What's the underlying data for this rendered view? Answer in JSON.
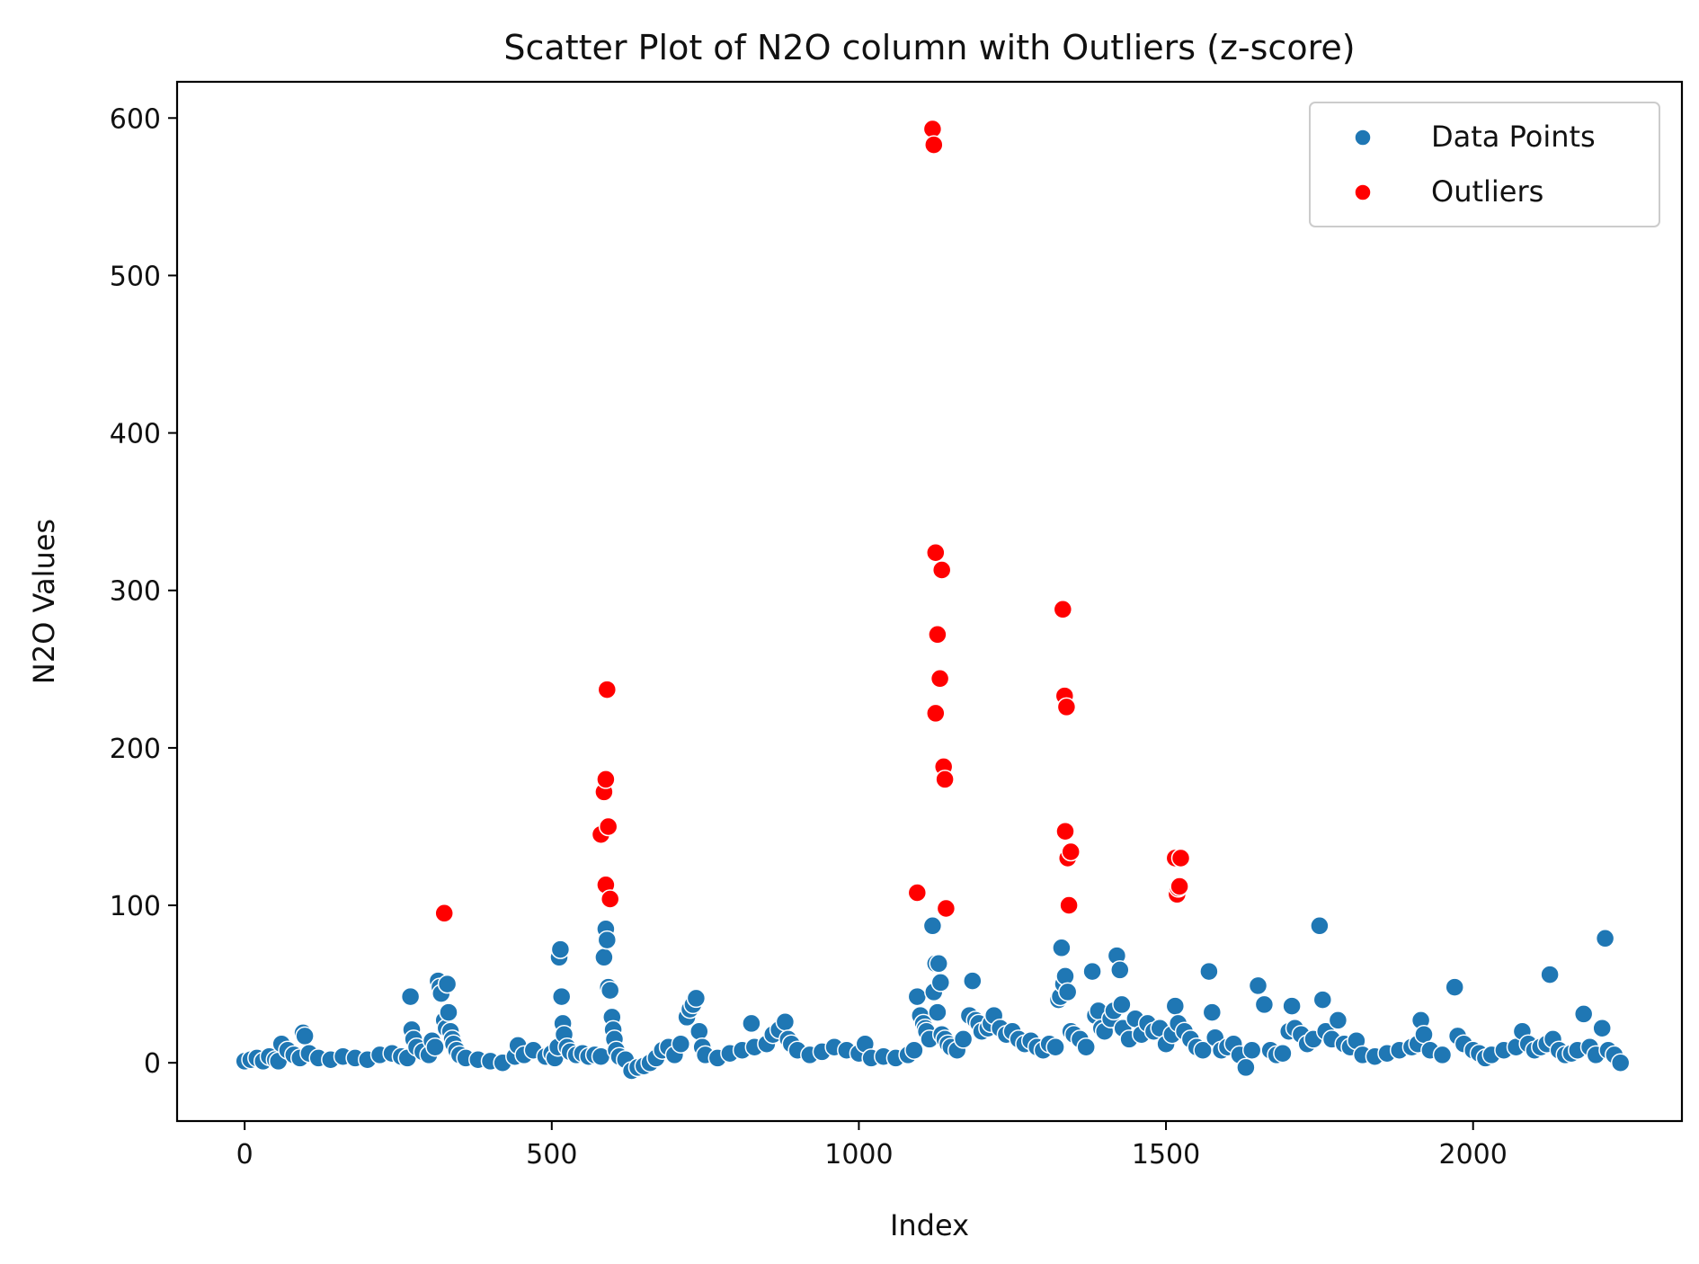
{
  "chart_data": {
    "type": "scatter",
    "title": "Scatter Plot of N2O column with Outliers (z-score)",
    "xlabel": "Index",
    "ylabel": "N2O Values",
    "xlim": [
      -110,
      2340
    ],
    "ylim": [
      -37,
      623
    ],
    "xticks": [
      "0",
      "500",
      "1000",
      "1500",
      "2000"
    ],
    "yticks": [
      "0",
      "100",
      "200",
      "300",
      "400",
      "500",
      "600"
    ],
    "grid": false,
    "legend_position": "top-right",
    "colors": {
      "data_points": "#1f77b4",
      "outliers": "#ff0000"
    },
    "series": [
      {
        "name": "Data Points",
        "points": [
          [
            0,
            1
          ],
          [
            10,
            2
          ],
          [
            20,
            3
          ],
          [
            30,
            1
          ],
          [
            40,
            4
          ],
          [
            50,
            2
          ],
          [
            55,
            1
          ],
          [
            60,
            12
          ],
          [
            70,
            8
          ],
          [
            80,
            5
          ],
          [
            90,
            3
          ],
          [
            95,
            19
          ],
          [
            98,
            17
          ],
          [
            105,
            6
          ],
          [
            120,
            3
          ],
          [
            140,
            2
          ],
          [
            160,
            4
          ],
          [
            180,
            3
          ],
          [
            200,
            2
          ],
          [
            220,
            5
          ],
          [
            240,
            6
          ],
          [
            255,
            4
          ],
          [
            265,
            3
          ],
          [
            270,
            42
          ],
          [
            272,
            21
          ],
          [
            275,
            15
          ],
          [
            280,
            10
          ],
          [
            290,
            7
          ],
          [
            300,
            5
          ],
          [
            305,
            14
          ],
          [
            310,
            10
          ],
          [
            315,
            52
          ],
          [
            318,
            48
          ],
          [
            320,
            44
          ],
          [
            325,
            27
          ],
          [
            328,
            22
          ],
          [
            330,
            50
          ],
          [
            332,
            32
          ],
          [
            335,
            20
          ],
          [
            338,
            15
          ],
          [
            340,
            12
          ],
          [
            345,
            8
          ],
          [
            350,
            5
          ],
          [
            360,
            3
          ],
          [
            380,
            2
          ],
          [
            400,
            1
          ],
          [
            420,
            0
          ],
          [
            440,
            4
          ],
          [
            445,
            11
          ],
          [
            455,
            5
          ],
          [
            470,
            8
          ],
          [
            490,
            4
          ],
          [
            500,
            6
          ],
          [
            505,
            3
          ],
          [
            510,
            10
          ],
          [
            512,
            67
          ],
          [
            514,
            72
          ],
          [
            516,
            42
          ],
          [
            518,
            25
          ],
          [
            520,
            18
          ],
          [
            525,
            10
          ],
          [
            530,
            7
          ],
          [
            540,
            5
          ],
          [
            550,
            6
          ],
          [
            560,
            4
          ],
          [
            570,
            5
          ],
          [
            580,
            4
          ],
          [
            585,
            67
          ],
          [
            588,
            85
          ],
          [
            590,
            78
          ],
          [
            592,
            48
          ],
          [
            595,
            46
          ],
          [
            598,
            29
          ],
          [
            600,
            21
          ],
          [
            602,
            15
          ],
          [
            605,
            8
          ],
          [
            610,
            4
          ],
          [
            620,
            2
          ],
          [
            630,
            -5
          ],
          [
            640,
            -3
          ],
          [
            650,
            -2
          ],
          [
            660,
            0
          ],
          [
            670,
            3
          ],
          [
            680,
            8
          ],
          [
            690,
            10
          ],
          [
            700,
            5
          ],
          [
            710,
            12
          ],
          [
            720,
            29
          ],
          [
            725,
            34
          ],
          [
            730,
            37
          ],
          [
            735,
            41
          ],
          [
            740,
            20
          ],
          [
            745,
            10
          ],
          [
            750,
            5
          ],
          [
            770,
            3
          ],
          [
            790,
            6
          ],
          [
            810,
            8
          ],
          [
            825,
            25
          ],
          [
            830,
            10
          ],
          [
            850,
            12
          ],
          [
            860,
            18
          ],
          [
            870,
            21
          ],
          [
            880,
            26
          ],
          [
            885,
            15
          ],
          [
            890,
            12
          ],
          [
            900,
            8
          ],
          [
            920,
            5
          ],
          [
            940,
            7
          ],
          [
            960,
            10
          ],
          [
            980,
            8
          ],
          [
            1000,
            6
          ],
          [
            1010,
            12
          ],
          [
            1020,
            3
          ],
          [
            1040,
            4
          ],
          [
            1060,
            3
          ],
          [
            1080,
            5
          ],
          [
            1090,
            8
          ],
          [
            1095,
            42
          ],
          [
            1100,
            30
          ],
          [
            1105,
            25
          ],
          [
            1108,
            22
          ],
          [
            1110,
            20
          ],
          [
            1115,
            15
          ],
          [
            1120,
            87
          ],
          [
            1122,
            45
          ],
          [
            1125,
            63
          ],
          [
            1128,
            32
          ],
          [
            1130,
            63
          ],
          [
            1133,
            51
          ],
          [
            1135,
            18
          ],
          [
            1140,
            15
          ],
          [
            1145,
            12
          ],
          [
            1150,
            10
          ],
          [
            1160,
            8
          ],
          [
            1170,
            15
          ],
          [
            1180,
            30
          ],
          [
            1185,
            52
          ],
          [
            1190,
            27
          ],
          [
            1195,
            25
          ],
          [
            1200,
            20
          ],
          [
            1210,
            22
          ],
          [
            1215,
            25
          ],
          [
            1220,
            30
          ],
          [
            1230,
            22
          ],
          [
            1240,
            18
          ],
          [
            1250,
            20
          ],
          [
            1260,
            15
          ],
          [
            1270,
            12
          ],
          [
            1280,
            14
          ],
          [
            1290,
            10
          ],
          [
            1300,
            8
          ],
          [
            1310,
            12
          ],
          [
            1320,
            10
          ],
          [
            1325,
            40
          ],
          [
            1328,
            42
          ],
          [
            1330,
            73
          ],
          [
            1333,
            50
          ],
          [
            1336,
            55
          ],
          [
            1340,
            45
          ],
          [
            1345,
            20
          ],
          [
            1350,
            18
          ],
          [
            1360,
            15
          ],
          [
            1370,
            10
          ],
          [
            1380,
            58
          ],
          [
            1385,
            30
          ],
          [
            1390,
            33
          ],
          [
            1395,
            22
          ],
          [
            1400,
            20
          ],
          [
            1410,
            28
          ],
          [
            1415,
            33
          ],
          [
            1420,
            68
          ],
          [
            1425,
            59
          ],
          [
            1428,
            37
          ],
          [
            1430,
            22
          ],
          [
            1440,
            15
          ],
          [
            1450,
            28
          ],
          [
            1460,
            18
          ],
          [
            1470,
            25
          ],
          [
            1480,
            20
          ],
          [
            1490,
            22
          ],
          [
            1500,
            12
          ],
          [
            1510,
            18
          ],
          [
            1515,
            36
          ],
          [
            1520,
            25
          ],
          [
            1530,
            20
          ],
          [
            1540,
            15
          ],
          [
            1550,
            10
          ],
          [
            1560,
            8
          ],
          [
            1570,
            58
          ],
          [
            1575,
            32
          ],
          [
            1580,
            16
          ],
          [
            1590,
            8
          ],
          [
            1600,
            10
          ],
          [
            1610,
            12
          ],
          [
            1620,
            5
          ],
          [
            1630,
            -3
          ],
          [
            1640,
            8
          ],
          [
            1650,
            49
          ],
          [
            1660,
            37
          ],
          [
            1670,
            8
          ],
          [
            1680,
            5
          ],
          [
            1690,
            6
          ],
          [
            1700,
            20
          ],
          [
            1705,
            36
          ],
          [
            1710,
            22
          ],
          [
            1720,
            18
          ],
          [
            1730,
            12
          ],
          [
            1740,
            15
          ],
          [
            1750,
            87
          ],
          [
            1755,
            40
          ],
          [
            1760,
            20
          ],
          [
            1770,
            15
          ],
          [
            1780,
            27
          ],
          [
            1790,
            12
          ],
          [
            1800,
            10
          ],
          [
            1810,
            14
          ],
          [
            1820,
            5
          ],
          [
            1840,
            4
          ],
          [
            1860,
            6
          ],
          [
            1880,
            8
          ],
          [
            1900,
            10
          ],
          [
            1910,
            12
          ],
          [
            1915,
            27
          ],
          [
            1920,
            18
          ],
          [
            1930,
            8
          ],
          [
            1950,
            5
          ],
          [
            1970,
            48
          ],
          [
            1975,
            17
          ],
          [
            1985,
            12
          ],
          [
            2000,
            8
          ],
          [
            2010,
            6
          ],
          [
            2020,
            3
          ],
          [
            2030,
            5
          ],
          [
            2050,
            8
          ],
          [
            2070,
            10
          ],
          [
            2080,
            20
          ],
          [
            2090,
            12
          ],
          [
            2100,
            8
          ],
          [
            2110,
            10
          ],
          [
            2120,
            12
          ],
          [
            2125,
            56
          ],
          [
            2130,
            15
          ],
          [
            2140,
            8
          ],
          [
            2150,
            5
          ],
          [
            2160,
            6
          ],
          [
            2170,
            8
          ],
          [
            2180,
            31
          ],
          [
            2190,
            10
          ],
          [
            2200,
            5
          ],
          [
            2210,
            22
          ],
          [
            2215,
            79
          ],
          [
            2220,
            8
          ],
          [
            2230,
            5
          ],
          [
            2240,
            0
          ]
        ]
      },
      {
        "name": "Outliers",
        "points": [
          [
            325,
            95
          ],
          [
            580,
            145
          ],
          [
            585,
            172
          ],
          [
            588,
            180
          ],
          [
            588,
            113
          ],
          [
            590,
            237
          ],
          [
            592,
            150
          ],
          [
            595,
            104
          ],
          [
            1095,
            108
          ],
          [
            1120,
            593
          ],
          [
            1122,
            583
          ],
          [
            1125,
            324
          ],
          [
            1125,
            222
          ],
          [
            1128,
            272
          ],
          [
            1132,
            244
          ],
          [
            1135,
            313
          ],
          [
            1138,
            188
          ],
          [
            1140,
            180
          ],
          [
            1142,
            98
          ],
          [
            1332,
            288
          ],
          [
            1335,
            233
          ],
          [
            1336,
            147
          ],
          [
            1338,
            226
          ],
          [
            1340,
            130
          ],
          [
            1342,
            100
          ],
          [
            1345,
            134
          ],
          [
            1515,
            130
          ],
          [
            1518,
            107
          ],
          [
            1520,
            111
          ],
          [
            1522,
            112
          ],
          [
            1524,
            130
          ]
        ]
      }
    ]
  }
}
